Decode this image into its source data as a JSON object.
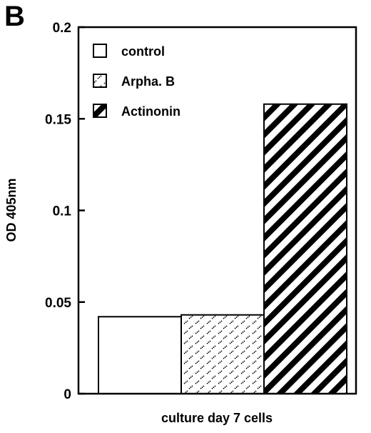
{
  "panel_label": "B",
  "chart_data": {
    "type": "bar",
    "title": "",
    "xlabel": "culture day 7 cells",
    "ylabel": "OD 405nm",
    "ylim": [
      0,
      0.2
    ],
    "yticks": [
      0,
      0.05,
      0.1,
      0.15,
      0.2
    ],
    "ytick_labels": [
      "0",
      "0.05",
      "0.1",
      "0.15",
      "0.2"
    ],
    "grid": false,
    "legend_position": "top-left",
    "series": [
      {
        "name": "control",
        "value": 0.042,
        "pattern": "solid-white"
      },
      {
        "name": "Arpha. B",
        "value": 0.043,
        "pattern": "dashes"
      },
      {
        "name": "Actinonin",
        "value": 0.158,
        "pattern": "diagonal-stripes"
      }
    ],
    "colors": {
      "ink": "#000000",
      "background": "#ffffff"
    }
  }
}
